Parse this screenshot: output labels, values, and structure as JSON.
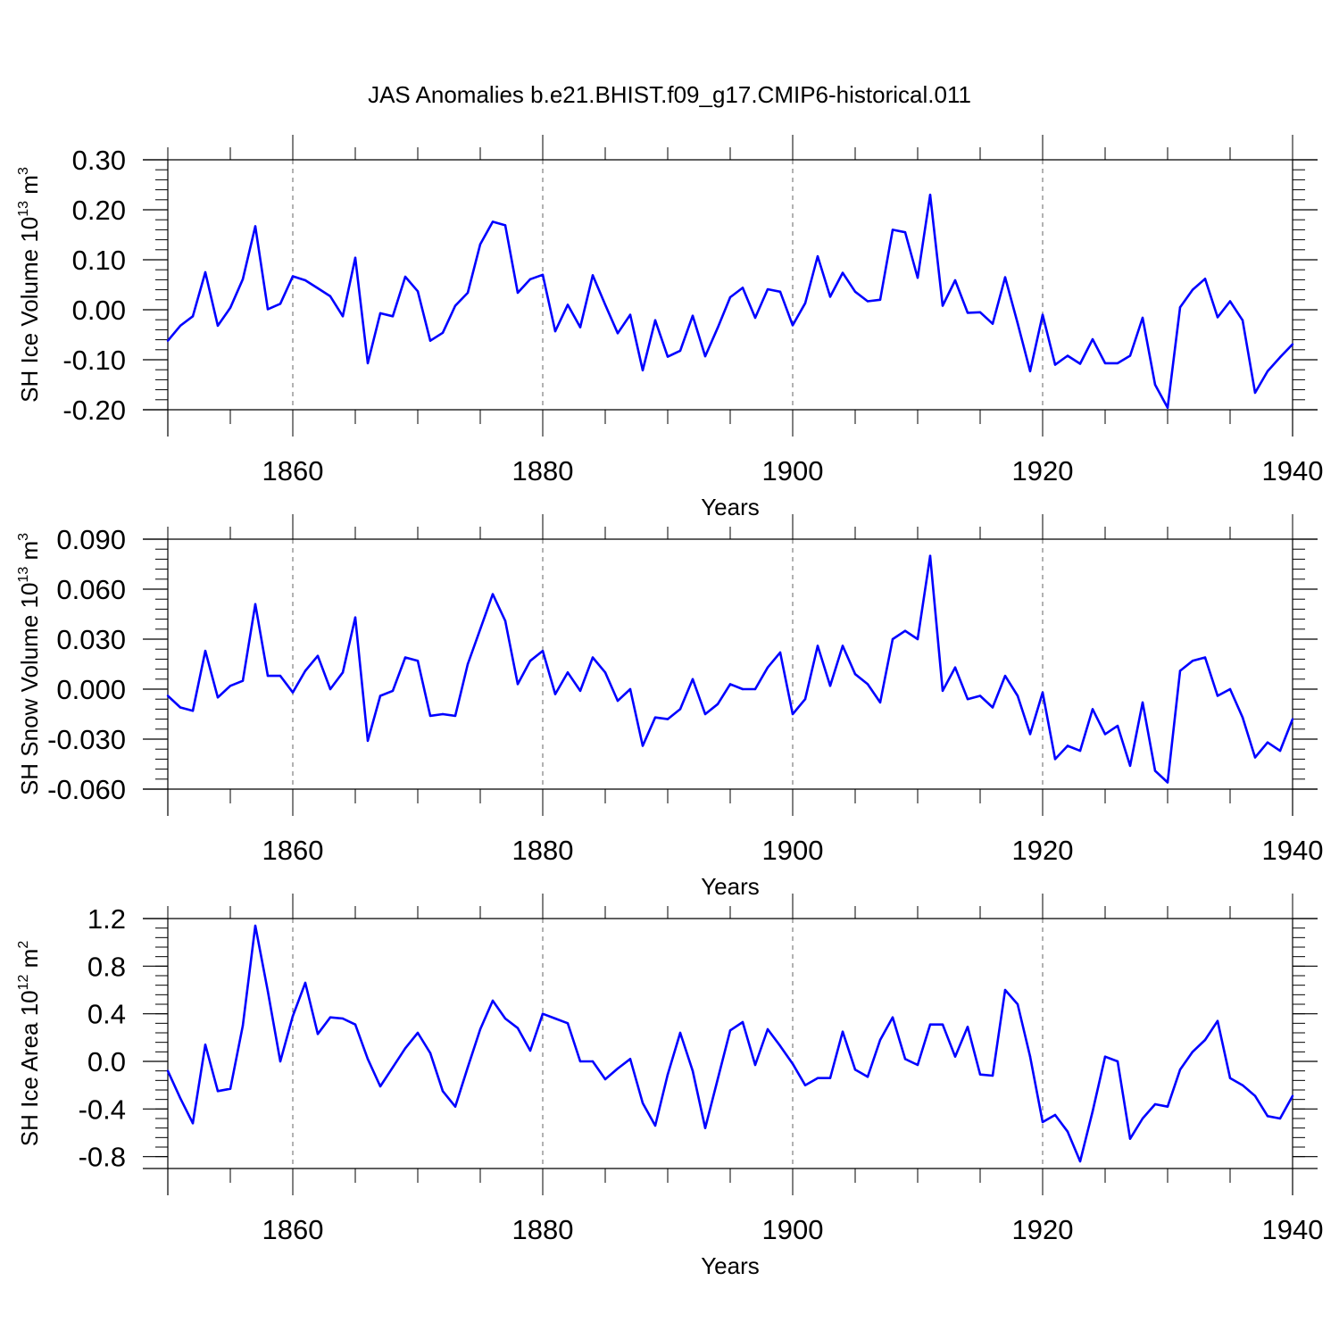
{
  "title": "JAS Anomalies b.e21.BHIST.f09_g17.CMIP6-historical.011",
  "colors": {
    "line": "#0000ff",
    "axis": "#000000",
    "grid": "#000000"
  },
  "chart_data": [
    {
      "type": "line",
      "xlabel": "Years",
      "ylabel": {
        "base": "SH Ice Volume 10",
        "exp": "13",
        "unit": " m",
        "unit_exp": "3"
      },
      "xlim": [
        1850,
        1940
      ],
      "ylim": [
        -0.2,
        0.3
      ],
      "xticks": [
        "1860",
        "1880",
        "1900",
        "1920",
        "1940"
      ],
      "yticks": [
        "0.30",
        "0.20",
        "0.10",
        "0.00",
        "-0.10",
        "-0.20"
      ],
      "grid": "vertical dashed at major x ticks",
      "series": [
        {
          "x": [
            1850,
            1851,
            1852,
            1853,
            1854,
            1855,
            1856,
            1857,
            1858,
            1859,
            1860,
            1861,
            1862,
            1863,
            1864,
            1865,
            1866,
            1867,
            1868,
            1869,
            1870,
            1871,
            1872,
            1873,
            1874,
            1875,
            1876,
            1877,
            1878,
            1879,
            1880,
            1881,
            1882,
            1883,
            1884,
            1885,
            1886,
            1887,
            1888,
            1889,
            1890,
            1891,
            1892,
            1893,
            1894,
            1895,
            1896,
            1897,
            1898,
            1899,
            1900,
            1901,
            1902,
            1903,
            1904,
            1905,
            1906,
            1907,
            1908,
            1909,
            1910,
            1911,
            1912,
            1913,
            1914,
            1915,
            1916,
            1917,
            1918,
            1919,
            1920,
            1921,
            1922,
            1923,
            1924,
            1925,
            1926,
            1927,
            1928,
            1929,
            1930,
            1931,
            1932,
            1933,
            1934,
            1935,
            1936,
            1937,
            1938,
            1939,
            1940
          ],
          "y": [
            -0.062,
            -0.032,
            -0.013,
            0.075,
            -0.032,
            0.004,
            0.061,
            0.167,
            0.001,
            0.012,
            0.067,
            0.059,
            0.043,
            0.027,
            -0.013,
            0.104,
            -0.107,
            -0.007,
            -0.013,
            0.066,
            0.037,
            -0.062,
            -0.046,
            0.008,
            0.034,
            0.131,
            0.176,
            0.169,
            0.034,
            0.061,
            0.07,
            -0.043,
            0.01,
            -0.035,
            0.069,
            0.01,
            -0.047,
            -0.01,
            -0.121,
            -0.021,
            -0.094,
            -0.082,
            -0.012,
            -0.093,
            -0.036,
            0.025,
            0.044,
            -0.016,
            0.041,
            0.036,
            -0.031,
            0.013,
            0.107,
            0.026,
            0.074,
            0.036,
            0.017,
            0.02,
            0.16,
            0.155,
            0.064,
            0.23,
            0.008,
            0.059,
            -0.006,
            -0.005,
            -0.028,
            0.065,
            -0.027,
            -0.123,
            -0.01,
            -0.11,
            -0.092,
            -0.108,
            -0.059,
            -0.107,
            -0.107,
            -0.092,
            -0.016,
            -0.15,
            -0.196,
            0.005,
            0.04,
            0.062,
            -0.015,
            0.017,
            -0.021,
            -0.166,
            -0.123,
            -0.095,
            -0.069
          ]
        }
      ]
    },
    {
      "type": "line",
      "xlabel": "Years",
      "ylabel": {
        "base": "SH Snow Volume 10",
        "exp": "13",
        "unit": " m",
        "unit_exp": "3"
      },
      "xlim": [
        1850,
        1940
      ],
      "ylim": [
        -0.06,
        0.09
      ],
      "xticks": [
        "1860",
        "1880",
        "1900",
        "1920",
        "1940"
      ],
      "yticks": [
        "0.090",
        "0.060",
        "0.030",
        "0.000",
        "-0.030",
        "-0.060"
      ],
      "grid": "vertical dashed at major x ticks",
      "series": [
        {
          "x": [
            1850,
            1851,
            1852,
            1853,
            1854,
            1855,
            1856,
            1857,
            1858,
            1859,
            1860,
            1861,
            1862,
            1863,
            1864,
            1865,
            1866,
            1867,
            1868,
            1869,
            1870,
            1871,
            1872,
            1873,
            1874,
            1875,
            1876,
            1877,
            1878,
            1879,
            1880,
            1881,
            1882,
            1883,
            1884,
            1885,
            1886,
            1887,
            1888,
            1889,
            1890,
            1891,
            1892,
            1893,
            1894,
            1895,
            1896,
            1897,
            1898,
            1899,
            1900,
            1901,
            1902,
            1903,
            1904,
            1905,
            1906,
            1907,
            1908,
            1909,
            1910,
            1911,
            1912,
            1913,
            1914,
            1915,
            1916,
            1917,
            1918,
            1919,
            1920,
            1921,
            1922,
            1923,
            1924,
            1925,
            1926,
            1927,
            1928,
            1929,
            1930,
            1931,
            1932,
            1933,
            1934,
            1935,
            1936,
            1937,
            1938,
            1939,
            1940
          ],
          "y": [
            -0.004,
            -0.011,
            -0.013,
            0.023,
            -0.005,
            0.002,
            0.005,
            0.051,
            0.008,
            0.008,
            -0.002,
            0.011,
            0.02,
            0.0,
            0.01,
            0.043,
            -0.031,
            -0.004,
            -0.001,
            0.019,
            0.017,
            -0.016,
            -0.015,
            -0.016,
            0.015,
            0.036,
            0.057,
            0.041,
            0.003,
            0.017,
            0.023,
            -0.003,
            0.01,
            -0.001,
            0.019,
            0.01,
            -0.007,
            0.0,
            -0.034,
            -0.017,
            -0.018,
            -0.012,
            0.006,
            -0.015,
            -0.009,
            0.003,
            0.0,
            0.0,
            0.013,
            0.022,
            -0.015,
            -0.006,
            0.026,
            0.002,
            0.026,
            0.009,
            0.003,
            -0.008,
            0.03,
            0.035,
            0.03,
            0.08,
            -0.001,
            0.013,
            -0.006,
            -0.004,
            -0.011,
            0.008,
            -0.004,
            -0.027,
            -0.002,
            -0.042,
            -0.034,
            -0.037,
            -0.012,
            -0.027,
            -0.022,
            -0.046,
            -0.008,
            -0.049,
            -0.056,
            0.011,
            0.017,
            0.019,
            -0.004,
            0.0,
            -0.017,
            -0.041,
            -0.032,
            -0.037,
            -0.018
          ]
        }
      ]
    },
    {
      "type": "line",
      "xlabel": "Years",
      "ylabel": {
        "base": "SH Ice Area 10",
        "exp": "12",
        "unit": " m",
        "unit_exp": "2"
      },
      "xlim": [
        1850,
        1940
      ],
      "ylim": [
        -0.9,
        1.2
      ],
      "xticks": [
        "1860",
        "1880",
        "1900",
        "1920",
        "1940"
      ],
      "yticks": [
        "1.2",
        "0.8",
        "0.4",
        "0.0",
        "-0.4",
        "-0.8"
      ],
      "grid": "vertical dashed at major x ticks",
      "series": [
        {
          "x": [
            1850,
            1851,
            1852,
            1853,
            1854,
            1855,
            1856,
            1857,
            1858,
            1859,
            1860,
            1861,
            1862,
            1863,
            1864,
            1865,
            1866,
            1867,
            1868,
            1869,
            1870,
            1871,
            1872,
            1873,
            1874,
            1875,
            1876,
            1877,
            1878,
            1879,
            1880,
            1881,
            1882,
            1883,
            1884,
            1885,
            1886,
            1887,
            1888,
            1889,
            1890,
            1891,
            1892,
            1893,
            1894,
            1895,
            1896,
            1897,
            1898,
            1899,
            1900,
            1901,
            1902,
            1903,
            1904,
            1905,
            1906,
            1907,
            1908,
            1909,
            1910,
            1911,
            1912,
            1913,
            1914,
            1915,
            1916,
            1917,
            1918,
            1919,
            1920,
            1921,
            1922,
            1923,
            1924,
            1925,
            1926,
            1927,
            1928,
            1929,
            1930,
            1931,
            1932,
            1933,
            1934,
            1935,
            1936,
            1937,
            1938,
            1939,
            1940
          ],
          "y": [
            -0.08,
            -0.31,
            -0.52,
            0.14,
            -0.25,
            -0.23,
            0.3,
            1.14,
            0.59,
            0.0,
            0.38,
            0.66,
            0.23,
            0.37,
            0.36,
            0.31,
            0.02,
            -0.21,
            -0.05,
            0.11,
            0.24,
            0.07,
            -0.25,
            -0.38,
            -0.05,
            0.27,
            0.51,
            0.36,
            0.28,
            0.09,
            0.4,
            0.36,
            0.32,
            0.0,
            0.0,
            -0.15,
            -0.06,
            0.02,
            -0.35,
            -0.54,
            -0.11,
            0.24,
            -0.08,
            -0.56,
            -0.15,
            0.26,
            0.33,
            -0.03,
            0.27,
            0.13,
            -0.02,
            -0.2,
            -0.14,
            -0.14,
            0.25,
            -0.07,
            -0.13,
            0.18,
            0.37,
            0.02,
            -0.03,
            0.31,
            0.31,
            0.04,
            0.29,
            -0.11,
            -0.12,
            0.6,
            0.48,
            0.04,
            -0.51,
            -0.45,
            -0.59,
            -0.84,
            -0.42,
            0.04,
            0.0,
            -0.65,
            -0.48,
            -0.36,
            -0.38,
            -0.07,
            0.08,
            0.18,
            0.34,
            -0.14,
            -0.2,
            -0.29,
            -0.46,
            -0.48,
            -0.29
          ]
        }
      ]
    }
  ]
}
